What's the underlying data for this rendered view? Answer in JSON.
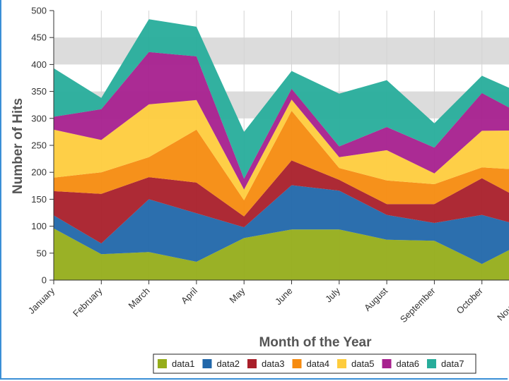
{
  "chart_data": {
    "type": "area",
    "stacked": true,
    "title": "",
    "xlabel": "Month of the Year",
    "ylabel": "Number of Hits",
    "ylim": [
      0,
      500
    ],
    "yticks": [
      0,
      50,
      100,
      150,
      200,
      250,
      300,
      350,
      400,
      450,
      500
    ],
    "bands": [
      [
        300,
        350
      ],
      [
        400,
        450
      ]
    ],
    "categories": [
      "January",
      "February",
      "March",
      "April",
      "May",
      "June",
      "July",
      "August",
      "September",
      "October",
      "November"
    ],
    "legend_position": "bottom",
    "series": [
      {
        "name": "data1",
        "color": "#95ad1a",
        "values": [
          96,
          48,
          52,
          34,
          78,
          94,
          94,
          75,
          73,
          30,
          75
        ]
      },
      {
        "name": "data2",
        "color": "#2167aa",
        "values": [
          24,
          20,
          98,
          90,
          20,
          82,
          72,
          46,
          33,
          91,
          22
        ]
      },
      {
        "name": "data3",
        "color": "#a91f2a",
        "values": [
          45,
          92,
          41,
          57,
          20,
          46,
          20,
          20,
          35,
          68,
          45
        ]
      },
      {
        "name": "data4",
        "color": "#f68b0f",
        "values": [
          25,
          40,
          37,
          98,
          30,
          92,
          22,
          44,
          37,
          20,
          62
        ]
      },
      {
        "name": "data5",
        "color": "#fecc3d",
        "values": [
          89,
          60,
          98,
          55,
          20,
          21,
          20,
          56,
          20,
          68,
          74
        ]
      },
      {
        "name": "data6",
        "color": "#a7208e",
        "values": [
          24,
          57,
          97,
          81,
          20,
          20,
          20,
          43,
          48,
          70,
          22
        ]
      },
      {
        "name": "data7",
        "color": "#27ad9b",
        "values": [
          90,
          21,
          61,
          55,
          87,
          33,
          98,
          87,
          45,
          32,
          40
        ]
      }
    ]
  }
}
